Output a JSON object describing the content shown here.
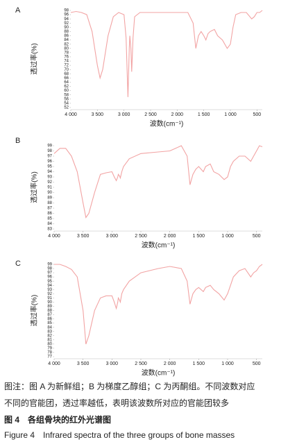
{
  "chart_data": [
    {
      "type": "line",
      "label": "A",
      "x_label": "波数(cm⁻¹)",
      "y_label": "透过率(%)",
      "color": "#f2a3a3",
      "xlim": [
        4000,
        400
      ],
      "ylim": [
        52,
        98
      ],
      "xticks": [
        {
          "value": 4000,
          "label": "4 000"
        },
        {
          "value": 3500,
          "label": "3 500"
        },
        {
          "value": 3000,
          "label": "3 000"
        },
        {
          "value": 2500,
          "label": "2 500"
        },
        {
          "value": 2000,
          "label": "2 000"
        },
        {
          "value": 1500,
          "label": "1 500"
        },
        {
          "value": 1000,
          "label": "1 000"
        },
        500
      ],
      "yticks": [
        52,
        54,
        56,
        58,
        60,
        62,
        64,
        66,
        68,
        70,
        72,
        74,
        76,
        78,
        80,
        82,
        84,
        86,
        88,
        90,
        92,
        94,
        96,
        98
      ],
      "x": [
        4000,
        3900,
        3800,
        3700,
        3600,
        3500,
        3450,
        3400,
        3300,
        3200,
        3100,
        3000,
        2960,
        2925,
        2900,
        2890,
        2870,
        2855,
        2830,
        2800,
        2700,
        2500,
        2200,
        2000,
        1800,
        1700,
        1650,
        1600,
        1550,
        1500,
        1460,
        1420,
        1380,
        1300,
        1240,
        1150,
        1060,
        1000,
        950,
        900,
        800,
        700,
        600,
        550,
        500,
        450,
        400
      ],
      "values": [
        97,
        97.5,
        97,
        96,
        88,
        72,
        66,
        70,
        86,
        95,
        97,
        96,
        85,
        57,
        80,
        86,
        80,
        69,
        85,
        95,
        97,
        97,
        97,
        97,
        97,
        92,
        80,
        86,
        88,
        86,
        84,
        87,
        88,
        89,
        86,
        84,
        80,
        82,
        90,
        96,
        97,
        97,
        94,
        95,
        97,
        97,
        98
      ]
    },
    {
      "type": "line",
      "label": "B",
      "x_label": "波数(cm⁻¹)",
      "y_label": "透过率(%)",
      "color": "#f2a3a3",
      "xlim": [
        4000,
        400
      ],
      "ylim": [
        83,
        99
      ],
      "xticks": [
        {
          "value": 4000,
          "label": "4 000"
        },
        {
          "value": 3500,
          "label": "3 500"
        },
        {
          "value": 3000,
          "label": "3 000"
        },
        {
          "value": 2500,
          "label": "2 500"
        },
        {
          "value": 2000,
          "label": "2 000"
        },
        {
          "value": 1500,
          "label": "1 500"
        },
        {
          "value": 1000,
          "label": "1 000"
        },
        500
      ],
      "yticks": [
        83,
        84,
        85,
        86,
        87,
        88,
        89,
        90,
        91,
        92,
        93,
        94,
        95,
        96,
        97,
        98,
        99
      ],
      "x": [
        4000,
        3900,
        3800,
        3700,
        3600,
        3500,
        3450,
        3400,
        3300,
        3200,
        3100,
        3000,
        2960,
        2925,
        2900,
        2890,
        2870,
        2855,
        2830,
        2800,
        2700,
        2500,
        2200,
        2000,
        1800,
        1700,
        1650,
        1600,
        1550,
        1500,
        1460,
        1420,
        1380,
        1300,
        1240,
        1150,
        1060,
        1000,
        950,
        900,
        800,
        700,
        600,
        550,
        500,
        450,
        400
      ],
      "values": [
        97.5,
        98.5,
        98.5,
        97,
        94,
        88,
        85.2,
        86,
        90,
        93.5,
        93.8,
        94,
        93,
        92.3,
        93,
        93.5,
        93.2,
        92.8,
        94,
        95,
        96.5,
        97.5,
        97.8,
        98,
        99,
        97,
        91.5,
        93.5,
        94.5,
        95,
        94.5,
        94,
        95,
        95.5,
        94,
        93.5,
        92.5,
        93,
        95,
        96,
        97,
        97,
        96,
        97,
        98,
        99,
        98.8
      ]
    },
    {
      "type": "line",
      "label": "C",
      "x_label": "波数(cm⁻¹)",
      "y_label": "透过率(%)",
      "color": "#f2a3a3",
      "xlim": [
        4000,
        400
      ],
      "ylim": [
        77,
        99
      ],
      "xticks": [
        {
          "value": 4000,
          "label": "4 000"
        },
        {
          "value": 3500,
          "label": "3 500"
        },
        {
          "value": 3000,
          "label": "3 000"
        },
        {
          "value": 2500,
          "label": "2 500"
        },
        {
          "value": 2000,
          "label": "2 000"
        },
        {
          "value": 1500,
          "label": "1 500"
        },
        {
          "value": 1000,
          "label": "1 000"
        },
        500
      ],
      "yticks": [
        77,
        78,
        79,
        80,
        81,
        82,
        83,
        84,
        85,
        86,
        87,
        88,
        89,
        90,
        91,
        92,
        93,
        94,
        95,
        96,
        97,
        98,
        99
      ],
      "x": [
        4000,
        3900,
        3800,
        3700,
        3600,
        3500,
        3450,
        3400,
        3300,
        3200,
        3100,
        3000,
        2960,
        2925,
        2900,
        2890,
        2870,
        2855,
        2830,
        2800,
        2700,
        2500,
        2200,
        2000,
        1800,
        1700,
        1650,
        1600,
        1550,
        1500,
        1460,
        1420,
        1380,
        1300,
        1240,
        1150,
        1060,
        1000,
        950,
        900,
        800,
        700,
        600,
        550,
        500,
        450,
        400
      ],
      "values": [
        99,
        99,
        98.5,
        97.8,
        96,
        88,
        80,
        82,
        88,
        91,
        91.5,
        91.5,
        90,
        88.5,
        90,
        91,
        90.5,
        90,
        92,
        93,
        95,
        97,
        98,
        98.5,
        98,
        95,
        89.5,
        92,
        93,
        93.5,
        93,
        92.5,
        93.5,
        94,
        93,
        92,
        90.5,
        92,
        94,
        96,
        97.5,
        98,
        96,
        97,
        97.5,
        98.5,
        99
      ]
    }
  ],
  "caption": {
    "note": [
      "图注：图 A 为新鲜组；B 为梯度乙醇组；C 为丙酮组。不同波数对应",
      "不同的官能团，透过率越低，表明该波数所对应的官能团较多"
    ],
    "title_cn": "图 4　各组骨块的红外光谱图",
    "title_en": "Figure 4　Infrared spectra of the three groups of bone masses"
  }
}
